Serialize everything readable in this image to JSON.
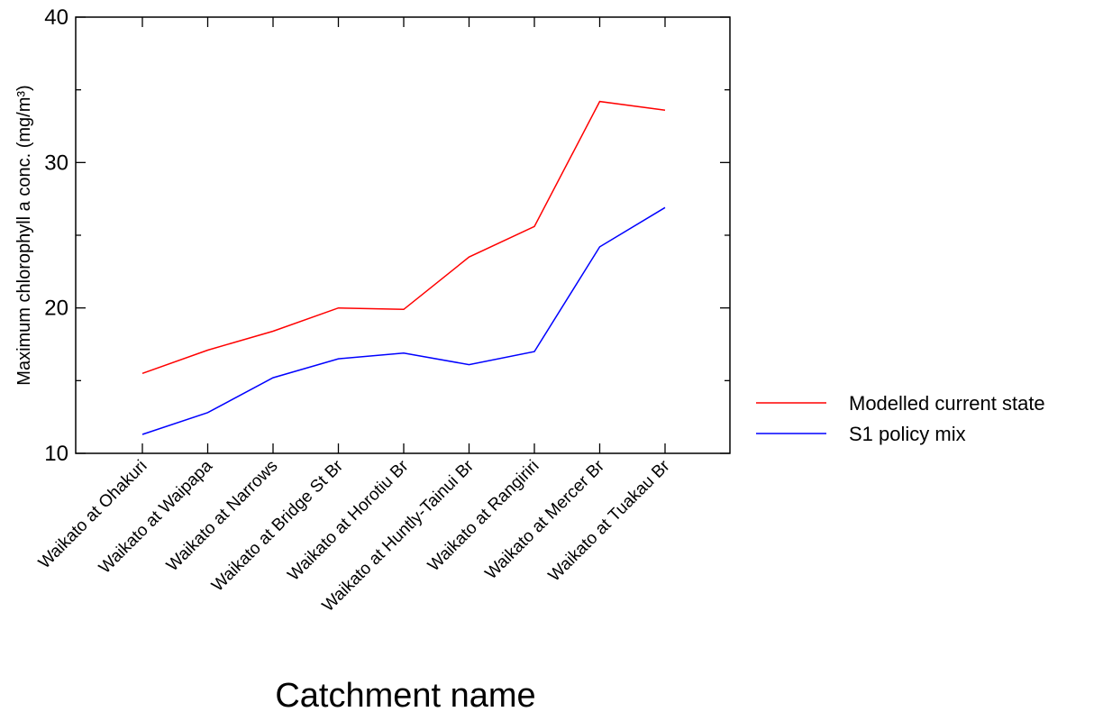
{
  "chart_data": {
    "type": "line",
    "title": "",
    "xlabel": "Catchment name",
    "ylabel": "Maximum chlorophyll a conc. (mg/m³)",
    "ylim": [
      10,
      40
    ],
    "yticks": [
      "10",
      "20",
      "30",
      "40"
    ],
    "grid": false,
    "legend_position": "right",
    "categories": [
      "Waikato at Ohakuri",
      "Waikato at Waipapa",
      "Waikato at Narrows",
      "Waikato at Bridge St Br",
      "Waikato at Horotiu Br",
      "Waikato at Huntly-Tainui Br",
      "Waikato at Rangiriri",
      "Waikato at Mercer Br",
      "Waikato at Tuakau Br"
    ],
    "series": [
      {
        "name": "Modelled current state",
        "color": "#ff0000",
        "values": [
          15.5,
          17.1,
          18.4,
          20.0,
          19.9,
          23.5,
          25.6,
          34.2,
          33.6
        ]
      },
      {
        "name": "S1 policy mix",
        "color": "#0000ff",
        "values": [
          11.3,
          12.8,
          15.2,
          16.5,
          16.9,
          16.1,
          17.0,
          24.2,
          26.9
        ]
      }
    ]
  }
}
